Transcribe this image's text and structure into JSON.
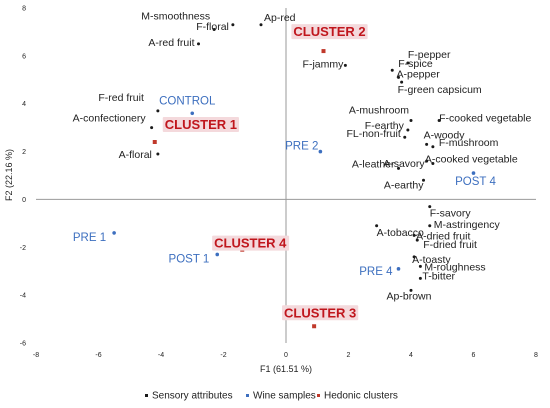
{
  "chart_data": {
    "type": "scatter",
    "xlabel": "F1 (61.51 %)",
    "ylabel": "F2 (22.16 %)",
    "xlim": [
      -8,
      8
    ],
    "ylim": [
      -6,
      8
    ],
    "xticks": [
      "-8",
      "-6",
      "-4",
      "-2",
      "0",
      "2",
      "4",
      "6",
      "8"
    ],
    "yticks": [
      "-6",
      "-4",
      "-2",
      "0",
      "2",
      "4",
      "6",
      "8"
    ],
    "grid": false,
    "legend_position": "bottom",
    "series": [
      {
        "name": "Sensory attributes",
        "color": "#1a1a1a",
        "points": [
          {
            "label": "M-smoothness",
            "x": -2.3,
            "y": 7.1
          },
          {
            "label": "Ap-red",
            "x": -0.8,
            "y": 7.3
          },
          {
            "label": "F-floral",
            "x": -1.7,
            "y": 7.3
          },
          {
            "label": "A-red fruit",
            "x": -2.8,
            "y": 6.5
          },
          {
            "label": "F-red fruit",
            "x": -4.1,
            "y": 3.7
          },
          {
            "label": "A-confectionery",
            "x": -4.3,
            "y": 3.0
          },
          {
            "label": "A-floral",
            "x": -4.1,
            "y": 1.9
          },
          {
            "label": "F-spice",
            "x": 3.4,
            "y": 5.4
          },
          {
            "label": "F-pepper",
            "x": 3.9,
            "y": 5.7
          },
          {
            "label": "F-jammy",
            "x": 1.9,
            "y": 5.6
          },
          {
            "label": "A-pepper",
            "x": 3.6,
            "y": 5.1
          },
          {
            "label": "F-green capsicum",
            "x": 3.7,
            "y": 4.9
          },
          {
            "label": "A-mushroom",
            "x": 4.0,
            "y": 3.3
          },
          {
            "label": "F-earthy",
            "x": 3.9,
            "y": 2.9
          },
          {
            "label": "F-cooked vegetable",
            "x": 4.9,
            "y": 3.3
          },
          {
            "label": "A-woody",
            "x": 4.5,
            "y": 2.3
          },
          {
            "label": "FL-non-fruit",
            "x": 3.8,
            "y": 2.6
          },
          {
            "label": "F-mushroom",
            "x": 4.7,
            "y": 2.2
          },
          {
            "label": "A-savory",
            "x": 4.5,
            "y": 1.6
          },
          {
            "label": "A-leather",
            "x": 3.6,
            "y": 1.3
          },
          {
            "label": "A-cooked vegetable",
            "x": 4.7,
            "y": 1.5
          },
          {
            "label": "A-earthy",
            "x": 4.4,
            "y": 0.8
          },
          {
            "label": "F-savory",
            "x": 4.6,
            "y": -0.3
          },
          {
            "label": "M-astringency",
            "x": 4.6,
            "y": -1.1
          },
          {
            "label": "A-tobacco",
            "x": 2.9,
            "y": -1.1
          },
          {
            "label": "A-dried fruit",
            "x": 4.1,
            "y": -1.5
          },
          {
            "label": "F-dried fruit",
            "x": 4.2,
            "y": -1.7
          },
          {
            "label": "A-toasty",
            "x": 4.1,
            "y": -2.4
          },
          {
            "label": "M-roughness",
            "x": 4.3,
            "y": -2.8
          },
          {
            "label": "T-bitter",
            "x": 4.3,
            "y": -3.3
          },
          {
            "label": "Ap-brown",
            "x": 4.0,
            "y": -3.8
          }
        ]
      },
      {
        "name": "Wine samples",
        "color": "#3d6fbf",
        "points": [
          {
            "label": "CONTROL",
            "x": -3.0,
            "y": 3.6
          },
          {
            "label": "PRE 2",
            "x": 1.1,
            "y": 2.0
          },
          {
            "label": "POST 4",
            "x": 6.0,
            "y": 1.1
          },
          {
            "label": "PRE 1",
            "x": -5.5,
            "y": -1.4
          },
          {
            "label": "POST 1",
            "x": -2.2,
            "y": -2.3
          },
          {
            "label": "PRE 4",
            "x": 3.6,
            "y": -2.9
          }
        ]
      },
      {
        "name": "Hedonic clusters",
        "color": "#c0392b",
        "points": [
          {
            "label": "CLUSTER 1",
            "x": -4.2,
            "y": 2.4
          },
          {
            "label": "CLUSTER 2",
            "x": 1.2,
            "y": 6.2
          },
          {
            "label": "CLUSTER 4",
            "x": -1.4,
            "y": -2.1
          },
          {
            "label": "CLUSTER 3",
            "x": 0.9,
            "y": -5.3
          }
        ]
      }
    ]
  }
}
